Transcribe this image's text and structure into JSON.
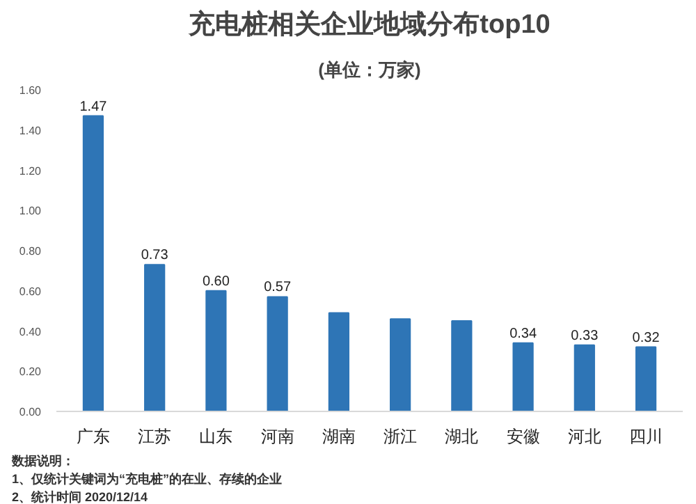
{
  "chart_data": {
    "type": "bar",
    "title": "充电桩相关企业地域分布top10",
    "subtitle": "(单位：万家)",
    "categories": [
      "广东",
      "江苏",
      "山东",
      "河南",
      "湖南",
      "浙江",
      "湖北",
      "安徽",
      "河北",
      "四川"
    ],
    "values": [
      1.47,
      0.73,
      0.6,
      0.57,
      0.49,
      0.46,
      0.45,
      0.34,
      0.33,
      0.32
    ],
    "value_labels": [
      "1.47",
      "0.73",
      "0.60",
      "0.57",
      null,
      null,
      null,
      "0.34",
      "0.33",
      "0.32"
    ],
    "color": "#2e75b6",
    "ylim": [
      0,
      1.6
    ],
    "yticks": [
      {
        "value": 0,
        "label": "0.00"
      },
      {
        "value": 0.2,
        "label": "0.20"
      },
      {
        "value": 0.4,
        "label": "0.40"
      },
      {
        "value": 0.6,
        "label": "0.60"
      },
      {
        "value": 0.8,
        "label": "0.80"
      },
      {
        "value": 1.0,
        "label": "1.00"
      },
      {
        "value": 1.2,
        "label": "1.20"
      },
      {
        "value": 1.4,
        "label": "1.40"
      },
      {
        "value": 1.6,
        "label": "1.60"
      }
    ],
    "grid": false,
    "annotations": [
      "数据说明：",
      "1、仅统计关键词为“充电桩”的在业、存续的企业",
      "2、统计时间 2020/12/14"
    ]
  }
}
